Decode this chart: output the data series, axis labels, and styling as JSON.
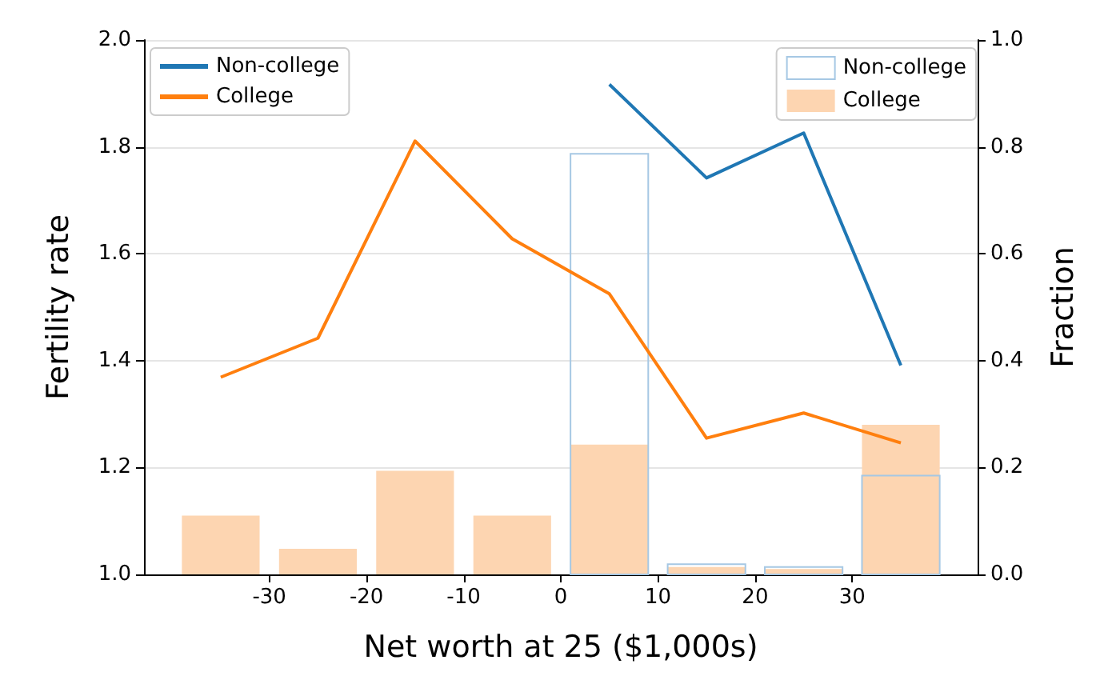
{
  "chart_data": {
    "type": "line",
    "xlabel": "Net worth at 25 ($1,000s)",
    "ylabel": "Fertility rate",
    "y2label": "Fraction",
    "xlim": [
      -42.9,
      42.9
    ],
    "xticks": [
      -30,
      -20,
      -10,
      0,
      10,
      20,
      30
    ],
    "ylim": [
      1,
      2
    ],
    "yticks": [
      {
        "value": 1,
        "label": "1.0"
      },
      {
        "value": 1.2,
        "label": "1.2"
      },
      {
        "value": 1.4,
        "label": "1.4"
      },
      {
        "value": 1.6,
        "label": "1.6"
      },
      {
        "value": 1.8,
        "label": "1.8"
      },
      {
        "value": 2,
        "label": "2.0"
      }
    ],
    "y2lim": [
      0,
      1
    ],
    "y2ticks": [
      {
        "value": 0,
        "label": "0.0"
      },
      {
        "value": 0.2,
        "label": "0.2"
      },
      {
        "value": 0.4,
        "label": "0.4"
      },
      {
        "value": 0.6,
        "label": "0.6"
      },
      {
        "value": 0.8,
        "label": "0.8"
      },
      {
        "value": 1,
        "label": "1.0"
      }
    ],
    "grid": "y",
    "legend": "top",
    "marker": "none",
    "series": [
      {
        "name": "Non-college",
        "color": "#1f77b4",
        "x": [
          5,
          15,
          25,
          35
        ],
        "values": [
          1.917,
          1.742,
          1.826,
          1.391
        ]
      },
      {
        "name": "College",
        "color": "#ff7f0e",
        "x": [
          -35,
          -25,
          -15,
          -5,
          5,
          15,
          25,
          35
        ],
        "values": [
          1.369,
          1.442,
          1.811,
          1.628,
          1.525,
          1.255,
          1.302,
          1.246
        ]
      },
      {
        "name": "Non-college",
        "type": "bar",
        "axis": "y2",
        "color": "#a6c8e4",
        "x": [
          5,
          15,
          25,
          35
        ],
        "values": [
          0.787,
          0.019,
          0.014,
          0.185
        ]
      },
      {
        "name": "College",
        "type": "bar",
        "axis": "y2",
        "color": "#fdd5b1",
        "x": [
          -35,
          -25,
          -15,
          -5,
          5,
          15,
          25,
          35
        ],
        "values": [
          0.11,
          0.048,
          0.194,
          0.11,
          0.243,
          0.014,
          0.01,
          0.28
        ]
      }
    ]
  }
}
